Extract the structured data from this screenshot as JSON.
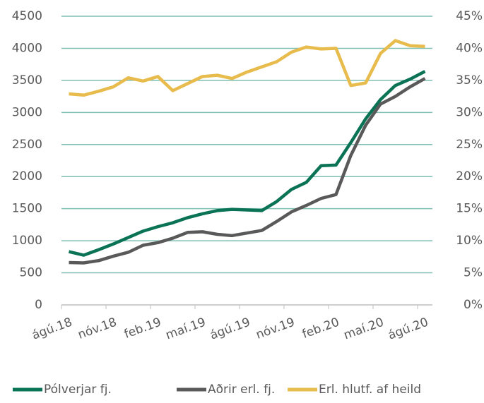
{
  "chart_data": {
    "type": "line",
    "categories": [
      "ágú.18",
      null,
      null,
      "nóv.18",
      null,
      null,
      "feb.19",
      null,
      null,
      "maí.19",
      null,
      null,
      "ágú.19",
      null,
      null,
      "nóv.19",
      null,
      null,
      "feb.20",
      null,
      null,
      "maí.20",
      null,
      null,
      "ágú.20"
    ],
    "series": [
      {
        "name": "Pólverjar fj.",
        "color": "#0b7355",
        "values": [
          830,
          775,
          860,
          950,
          1050,
          1150,
          1220,
          1280,
          1360,
          1420,
          1470,
          1490,
          1480,
          1470,
          1610,
          1800,
          1910,
          2170,
          2180,
          2530,
          2900,
          3200,
          3420,
          3520,
          3640
        ]
      },
      {
        "name": "Aðrir erl. fj.",
        "color": "#595959",
        "values": [
          660,
          655,
          690,
          760,
          820,
          930,
          970,
          1040,
          1130,
          1140,
          1100,
          1080,
          1120,
          1160,
          1300,
          1450,
          1550,
          1660,
          1720,
          2330,
          2800,
          3130,
          3250,
          3400,
          3530
        ]
      },
      {
        "name": "Erl. hlutf. af heild",
        "color": "#e8bb4d",
        "axis": "y2",
        "values": [
          32.9,
          32.7,
          33.3,
          34.0,
          35.4,
          34.9,
          35.6,
          33.4,
          34.5,
          35.6,
          35.8,
          35.3,
          36.3,
          37.1,
          37.9,
          39.4,
          40.2,
          39.9,
          40.0,
          34.2,
          34.6,
          39.2,
          41.2,
          40.4,
          40.3
        ]
      }
    ],
    "ylim": [
      0,
      4500
    ],
    "yticks": [
      0,
      500,
      1000,
      1500,
      2000,
      2500,
      3000,
      3500,
      4000,
      4500
    ],
    "y2lim": [
      0,
      45
    ],
    "y2ticks": [
      {
        "value": 0,
        "label": "0%"
      },
      {
        "value": 5,
        "label": "5%"
      },
      {
        "value": 10,
        "label": "10%"
      },
      {
        "value": 15,
        "label": "15%"
      },
      {
        "value": 20,
        "label": "20%"
      },
      {
        "value": 25,
        "label": "25%"
      },
      {
        "value": 30,
        "label": "30%"
      },
      {
        "value": 35,
        "label": "35%"
      },
      {
        "value": 40,
        "label": "40%"
      },
      {
        "value": 45,
        "label": "45%"
      }
    ],
    "grid": true,
    "legend": "bottom"
  }
}
